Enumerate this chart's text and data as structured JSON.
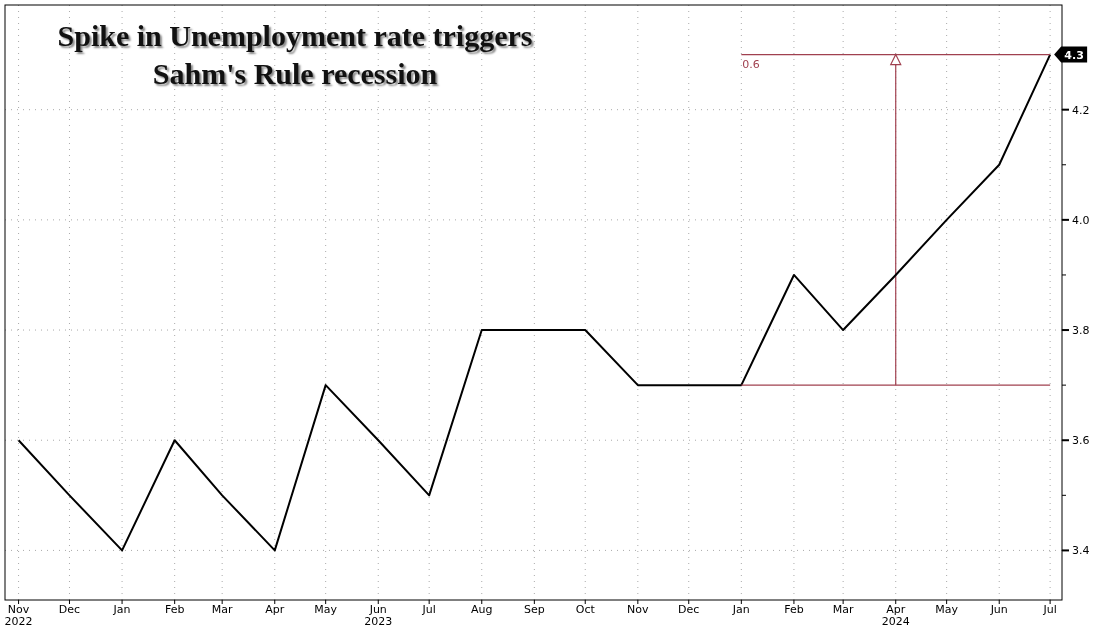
{
  "chart_data": {
    "type": "line",
    "title": "Spike in Unemployment rate triggers\nSahm's Rule recession",
    "x": [
      "2022-11",
      "2022-12",
      "2023-01",
      "2023-02",
      "2023-03",
      "2023-04",
      "2023-05",
      "2023-06",
      "2023-07",
      "2023-08",
      "2023-09",
      "2023-10",
      "2023-11",
      "2023-12",
      "2024-01",
      "2024-02",
      "2024-03",
      "2024-04",
      "2024-05",
      "2024-06",
      "2024-07"
    ],
    "series": [
      {
        "color": "#000000",
        "values": [
          3.6,
          3.5,
          3.4,
          3.6,
          3.5,
          3.4,
          3.7,
          3.6,
          3.5,
          3.8,
          3.8,
          3.8,
          3.7,
          3.7,
          3.7,
          3.9,
          3.8,
          3.9,
          4.0,
          4.1,
          4.3
        ],
        "value_labels": [
          null,
          null,
          null,
          null,
          null,
          null,
          null,
          null,
          null,
          null,
          null,
          null,
          null,
          null,
          null,
          null,
          null,
          null,
          null,
          null,
          "4.3"
        ]
      },
      {
        "color": "#a0404f",
        "x": [
          "2024-01",
          "2024-07"
        ],
        "values": [
          3.7,
          3.7
        ]
      },
      {
        "color": "#a0404f",
        "x": [
          "2024-01",
          "2024-07"
        ],
        "values": [
          4.3,
          4.3
        ]
      }
    ],
    "xlim": [
      "2022-10-24",
      "2024-07-08"
    ],
    "xticks": [
      {
        "value": "2022-11",
        "label": "Nov\n2022"
      },
      {
        "value": "2022-12",
        "label": "Dec"
      },
      {
        "value": "2023-01",
        "label": "Jan"
      },
      {
        "value": "2023-02",
        "label": "Feb"
      },
      {
        "value": "2023-03",
        "label": "Mar"
      },
      {
        "value": "2023-04",
        "label": "Apr"
      },
      {
        "value": "2023-05",
        "label": "May"
      },
      {
        "value": "2023-06",
        "label": "Jun\n2023"
      },
      {
        "value": "2023-07",
        "label": "Jul"
      },
      {
        "value": "2023-08",
        "label": "Aug"
      },
      {
        "value": "2023-09",
        "label": "Sep"
      },
      {
        "value": "2023-10",
        "label": "Oct"
      },
      {
        "value": "2023-11",
        "label": "Nov"
      },
      {
        "value": "2023-12",
        "label": "Dec"
      },
      {
        "value": "2024-01",
        "label": "Jan"
      },
      {
        "value": "2024-02",
        "label": "Feb"
      },
      {
        "value": "2024-03",
        "label": "Mar"
      },
      {
        "value": "2024-04",
        "label": "Apr\n2024"
      },
      {
        "value": "2024-05",
        "label": "May"
      },
      {
        "value": "2024-06",
        "label": "Jun"
      },
      {
        "value": "2024-07",
        "label": "Jul"
      }
    ],
    "ylim": [
      3.31,
      4.39
    ],
    "yticks": [
      3.4,
      {
        "value": 3.5,
        "label": null
      },
      3.6,
      {
        "value": 3.7,
        "label": null
      },
      3.8,
      {
        "value": 3.9,
        "label": null
      },
      {
        "value": 4,
        "label": "4.0"
      },
      {
        "value": 4.1,
        "label": null
      },
      4.2,
      {
        "value": 4.3,
        "label": null
      }
    ],
    "annotations": [
      "0.6"
    ],
    "grid": true,
    "line_style": "solid",
    "marker": "none"
  }
}
